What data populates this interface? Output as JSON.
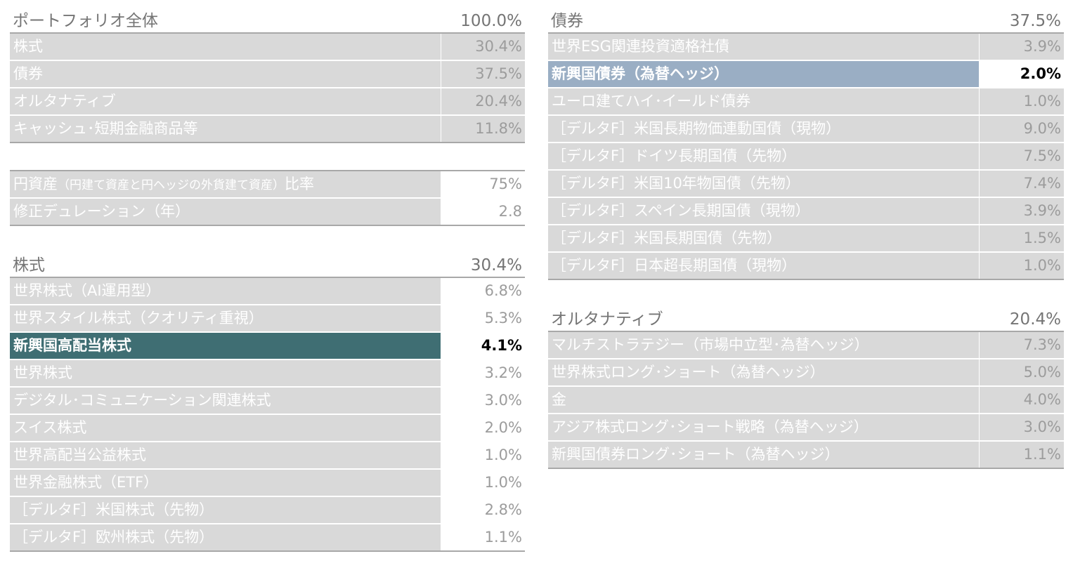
{
  "portfolio": {
    "title": "ポートフォリオ全体",
    "total": "100.0%",
    "rows": [
      {
        "label": "株式",
        "value": "30.4%"
      },
      {
        "label": "債券",
        "value": "37.5%"
      },
      {
        "label": "オルタナティブ",
        "value": "20.4%"
      },
      {
        "label": "キャッシュ･短期金融商品等",
        "value": "11.8%"
      }
    ]
  },
  "metrics": {
    "yen_ratio_label_main": "円資産",
    "yen_ratio_label_note": "（円建て資産と円ヘッジの外貨建て資産）",
    "yen_ratio_label_tail": "比率",
    "yen_ratio_value": "75%",
    "duration_label": "修正デュレーション（年）",
    "duration_value": "2.8"
  },
  "equity": {
    "title": "株式",
    "total": "30.4%",
    "rows": [
      {
        "label": "世界株式（AI運用型）",
        "value": "6.8%"
      },
      {
        "label": "世界スタイル株式（クオリティ重視）",
        "value": "5.3%"
      },
      {
        "label": "新興国高配当株式",
        "value": "4.1%"
      },
      {
        "label": "世界株式",
        "value": "3.2%"
      },
      {
        "label": "デジタル･コミュニケーション関連株式",
        "value": "3.0%"
      },
      {
        "label": "スイス株式",
        "value": "2.0%"
      },
      {
        "label": "世界高配当公益株式",
        "value": "1.0%"
      },
      {
        "label": "世界金融株式（ETF）",
        "value": "1.0%"
      },
      {
        "label": "［デルタF］米国株式（先物）",
        "value": "2.8%"
      },
      {
        "label": "［デルタF］欧州株式（先物）",
        "value": "1.1%"
      }
    ]
  },
  "bonds": {
    "title": "債券",
    "total": "37.5%",
    "rows": [
      {
        "label": "世界ESG関連投資適格社債",
        "value": "3.9%"
      },
      {
        "label": "新興国債券（為替ヘッジ）",
        "value": "2.0%"
      },
      {
        "label": "ユーロ建てハイ･イールド債券",
        "value": "1.0%"
      },
      {
        "label": "［デルタF］米国長期物価連動国債（現物）",
        "value": "9.0%"
      },
      {
        "label": "［デルタF］ドイツ長期国債（先物）",
        "value": "7.5%"
      },
      {
        "label": "［デルタF］米国10年物国債（先物）",
        "value": "7.4%"
      },
      {
        "label": "［デルタF］スペイン長期国債（現物）",
        "value": "3.9%"
      },
      {
        "label": "［デルタF］米国長期国債（先物）",
        "value": "1.5%"
      },
      {
        "label": "［デルタF］日本超長期国債（現物）",
        "value": "1.0%"
      }
    ]
  },
  "alternatives": {
    "title": "オルタナティブ",
    "total": "20.4%",
    "rows": [
      {
        "label": "マルチストラテジー（市場中立型･為替ヘッジ）",
        "value": "7.3%"
      },
      {
        "label": "世界株式ロング･ショート（為替ヘッジ）",
        "value": "5.0%"
      },
      {
        "label": "金",
        "value": "4.0%"
      },
      {
        "label": "アジア株式ロング･ショート戦略（為替ヘッジ）",
        "value": "3.0%"
      },
      {
        "label": "新興国債券ロング･ショート（為替ヘッジ）",
        "value": "1.1%"
      }
    ]
  },
  "colors": {
    "row_bg": "#d9d9d9",
    "highlight_teal": "#3f6e73",
    "highlight_blue": "#9aaec4",
    "header_text": "#757575"
  }
}
